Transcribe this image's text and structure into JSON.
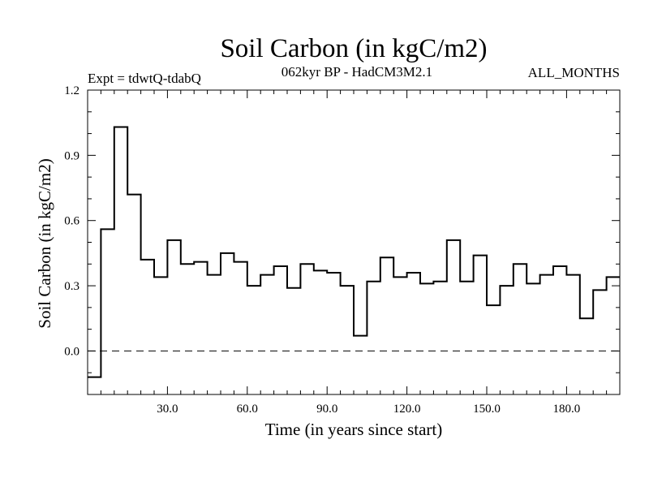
{
  "chart_data": {
    "type": "line",
    "step": true,
    "title": "Soil Carbon (in kgC/m2)",
    "subtitle_left": "Expt = tdwtQ-tdabQ",
    "subtitle_center": "062kyr BP - HadCM3M2.1",
    "subtitle_right": "ALL_MONTHS",
    "xlabel": "Time (in years since start)",
    "ylabel": "Soil Carbon (in kgC/m2)",
    "xlim": [
      0,
      200
    ],
    "ylim": [
      -0.2,
      1.2
    ],
    "x_ticks": [
      30,
      60,
      90,
      120,
      150,
      180
    ],
    "x_tick_labels": [
      "30.0",
      "60.0",
      "90.0",
      "120.0",
      "150.0",
      "180.0"
    ],
    "y_ticks": [
      0.0,
      0.3,
      0.6,
      0.9,
      1.2
    ],
    "y_tick_labels": [
      "0.0",
      "0.3",
      "0.6",
      "0.9",
      "1.2"
    ],
    "zero_line": "dashed",
    "bin_width": 5,
    "series": [
      {
        "name": "Soil Carbon",
        "x": [
          0,
          5,
          10,
          15,
          20,
          25,
          30,
          35,
          40,
          45,
          50,
          55,
          60,
          65,
          70,
          75,
          80,
          85,
          90,
          95,
          100,
          105,
          110,
          115,
          120,
          125,
          130,
          135,
          140,
          145,
          150,
          155,
          160,
          165,
          170,
          175,
          180,
          185,
          190,
          195
        ],
        "values": [
          -0.12,
          0.56,
          1.03,
          0.72,
          0.42,
          0.34,
          0.51,
          0.4,
          0.41,
          0.35,
          0.45,
          0.41,
          0.3,
          0.35,
          0.39,
          0.29,
          0.4,
          0.37,
          0.36,
          0.3,
          0.07,
          0.32,
          0.43,
          0.34,
          0.36,
          0.31,
          0.32,
          0.51,
          0.32,
          0.44,
          0.21,
          0.3,
          0.4,
          0.31,
          0.35,
          0.39,
          0.35,
          0.15,
          0.28,
          0.34
        ]
      }
    ]
  }
}
